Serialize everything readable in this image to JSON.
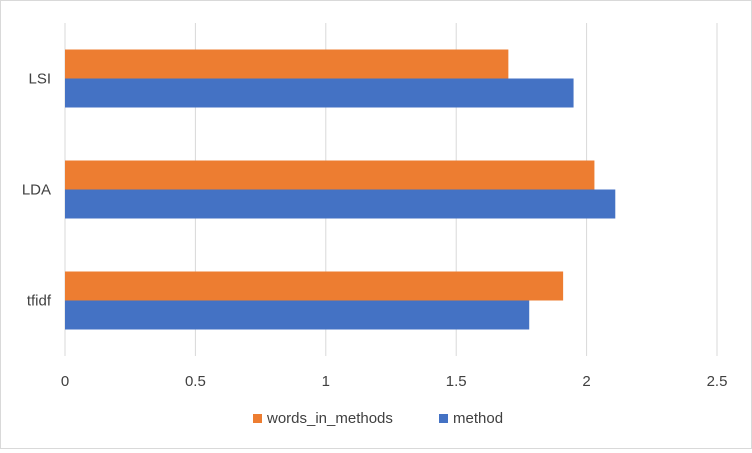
{
  "chart_data": {
    "type": "bar",
    "orientation": "horizontal",
    "title": "",
    "xlabel": "",
    "ylabel": "",
    "categories": [
      "LSI",
      "LDA",
      "tfidf"
    ],
    "series": [
      {
        "name": "words_in_methods",
        "color": "#ED7D31",
        "values": [
          1.7,
          2.03,
          1.91
        ]
      },
      {
        "name": "method",
        "color": "#4472C4",
        "values": [
          1.95,
          2.11,
          1.78
        ]
      }
    ],
    "xlim": [
      0,
      2.5
    ],
    "x_ticks": [
      "0",
      "0.5",
      "1",
      "1.5",
      "2",
      "2.5"
    ],
    "grid": "vertical",
    "legend_position": "bottom"
  }
}
